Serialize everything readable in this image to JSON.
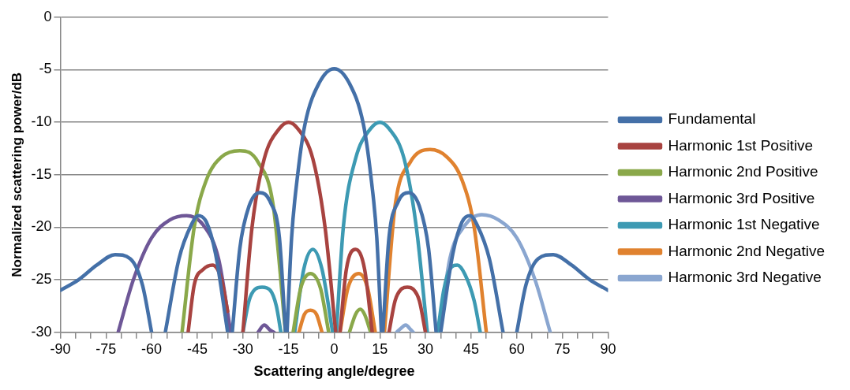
{
  "chart_data": {
    "type": "line",
    "xlabel": "Scattering angle/degree",
    "ylabel": "Normalized scattering power/dB",
    "xlim": [
      -90,
      90
    ],
    "xticks": [
      -90,
      {
        "value": -85,
        "label": null
      },
      {
        "value": -80,
        "label": null
      },
      -75,
      {
        "value": -70,
        "label": null
      },
      {
        "value": -65,
        "label": null
      },
      -60,
      {
        "value": -55,
        "label": null
      },
      {
        "value": -50,
        "label": null
      },
      -45,
      {
        "value": -40,
        "label": null
      },
      {
        "value": -35,
        "label": null
      },
      -30,
      {
        "value": -25,
        "label": null
      },
      {
        "value": -20,
        "label": null
      },
      -15,
      {
        "value": -10,
        "label": null
      },
      {
        "value": -5,
        "label": null
      },
      0,
      {
        "value": 5,
        "label": null
      },
      {
        "value": 10,
        "label": null
      },
      15,
      {
        "value": 20,
        "label": null
      },
      {
        "value": 25,
        "label": null
      },
      30,
      {
        "value": 35,
        "label": null
      },
      {
        "value": 40,
        "label": null
      },
      45,
      {
        "value": 50,
        "label": null
      },
      {
        "value": 55,
        "label": null
      },
      60,
      {
        "value": 65,
        "label": null
      },
      {
        "value": 70,
        "label": null
      },
      75,
      {
        "value": 80,
        "label": null
      },
      {
        "value": 85,
        "label": null
      },
      90
    ],
    "ylim": [
      -30,
      0
    ],
    "yticks": [
      0,
      -5,
      -10,
      -15,
      -20,
      -25,
      -30
    ],
    "grid": "y",
    "legend": "right",
    "marker": "none",
    "line_style": "solid",
    "series": [
      {
        "name": "Fundamental",
        "color": "#4470a8",
        "x": [
          -90,
          -84,
          -78,
          -72,
          -67,
          -63,
          -60,
          -58,
          -55.5,
          -51,
          -47,
          -44.7,
          -42,
          -39,
          -35,
          -34.2,
          -33.5,
          -31,
          -28,
          -24.5,
          -21,
          -18,
          -16,
          -15.8,
          -15.5,
          -14,
          -12,
          -9.6,
          -5,
          0,
          5,
          9.6,
          12,
          14,
          15.5,
          15.8,
          16,
          18,
          21,
          24.5,
          28,
          31,
          33.5,
          34.2,
          35,
          39,
          42,
          44.7,
          47,
          51,
          55.5,
          58,
          60,
          63,
          67,
          72,
          78,
          84,
          90
        ],
        "values": [
          -26,
          -25,
          -23.6,
          -22.6,
          -23,
          -25.5,
          -30,
          null,
          -30,
          -23,
          -19.8,
          -18.9,
          -19.5,
          -22.5,
          -30,
          null,
          -30,
          -22,
          -18,
          -16.7,
          -17.6,
          -21,
          -30,
          null,
          -30,
          -21,
          -15,
          -10.2,
          -6.3,
          -4.9,
          -6.3,
          -10.2,
          -15,
          -21,
          -30,
          null,
          -30,
          -21,
          -17.6,
          -16.7,
          -18,
          -22,
          -30,
          null,
          -30,
          -22.5,
          -19.5,
          -18.9,
          -19.8,
          -23,
          -30,
          null,
          -30,
          -25.5,
          -23,
          -22.6,
          -23.6,
          -25,
          -26
        ]
      },
      {
        "name": "Harmonic 1st Positive",
        "color": "#a84340",
        "x": [
          -48,
          -46,
          -43,
          -40,
          -37,
          -35,
          -34,
          -32,
          -30,
          -27,
          -23,
          -18,
          -15,
          -12,
          -7,
          -3,
          0.5,
          1.2,
          1.9,
          4,
          7,
          10,
          12.5,
          15,
          18,
          20,
          22,
          24,
          26,
          28,
          30
        ],
        "values": [
          -30,
          -25.5,
          -24,
          -23.6,
          -25,
          -28,
          null,
          null,
          -30,
          -20,
          -13.5,
          -10.6,
          -10,
          -10.6,
          -13.5,
          -20,
          -30,
          null,
          -30,
          -24,
          -22.1,
          -24,
          -30,
          null,
          -30,
          -27,
          -25.9,
          -25.7,
          -25.9,
          -27,
          -30
        ]
      },
      {
        "name": "Harmonic 2nd Positive",
        "color": "#8aa84a",
        "x": [
          -50,
          -46,
          -42,
          -37,
          -31,
          -25,
          -20,
          -16,
          -15,
          -13.5,
          -11,
          -7.8,
          -4.5,
          -1.8,
          0,
          5,
          7,
          8.6,
          10,
          12
        ],
        "values": [
          -30,
          -20,
          -15.5,
          -13.3,
          -12.7,
          -13.8,
          -18,
          -30,
          null,
          -30,
          -25.8,
          -24.4,
          -25.8,
          -30,
          null,
          -30,
          -28.3,
          -27.8,
          -28.3,
          -30
        ]
      },
      {
        "name": "Harmonic 3rd Positive",
        "color": "#6e5797",
        "x": [
          -71,
          -66,
          -60,
          -54,
          -48.5,
          -43,
          -38,
          -34,
          -30,
          -25,
          -23,
          -21,
          -19.8
        ],
        "values": [
          -30,
          -25,
          -21,
          -19.3,
          -18.9,
          -19.8,
          -23,
          -30,
          null,
          -30,
          -29.3,
          -29.8,
          -30
        ]
      },
      {
        "name": "Harmonic 1st Negative",
        "color": "#3d9ab3",
        "x": [
          -30,
          -28,
          -26,
          -23.7,
          -21,
          -19,
          -17.5,
          -15,
          -13,
          -10,
          -7,
          -4,
          -0.5,
          0,
          0.7,
          3,
          7,
          12,
          15,
          18,
          23,
          27,
          30.6,
          32,
          34,
          36,
          38,
          40.5,
          43,
          46,
          48
        ],
        "values": [
          -30,
          -27,
          -25.9,
          -25.7,
          -26,
          -27.5,
          -30,
          null,
          -30,
          -24,
          -22.1,
          -24,
          -30,
          null,
          -30,
          -20,
          -13.5,
          -10.6,
          -10,
          -10.6,
          -13.5,
          -20,
          -30,
          null,
          -30,
          -26,
          -24,
          -23.6,
          -24.5,
          -27,
          -30
        ]
      },
      {
        "name": "Harmonic 2nd Negative",
        "color": "#e0822f",
        "x": [
          -11.6,
          -9.8,
          -7.8,
          -5.8,
          -4,
          -2,
          1.9,
          4.5,
          8.1,
          11,
          13.5,
          15,
          16.5,
          20,
          25,
          31.5,
          37,
          42,
          46,
          50
        ],
        "values": [
          -30,
          -28.3,
          -27.9,
          -28.3,
          -30,
          null,
          -30,
          -25.8,
          -24.4,
          -25.8,
          -30,
          null,
          -30,
          -18,
          -13.8,
          -12.6,
          -13.3,
          -15.5,
          -20,
          -30
        ]
      },
      {
        "name": "Harmonic 3rd Negative",
        "color": "#8aa6d0",
        "x": [
          20.5,
          22,
          23.5,
          25,
          26,
          30,
          34.5,
          38,
          43,
          48.5,
          54,
          60,
          66,
          71
        ],
        "values": [
          -30,
          -29.6,
          -29.3,
          -29.7,
          -30,
          null,
          -30,
          -23,
          -19.8,
          -18.8,
          -19.3,
          -21,
          -25,
          -30
        ]
      }
    ]
  }
}
